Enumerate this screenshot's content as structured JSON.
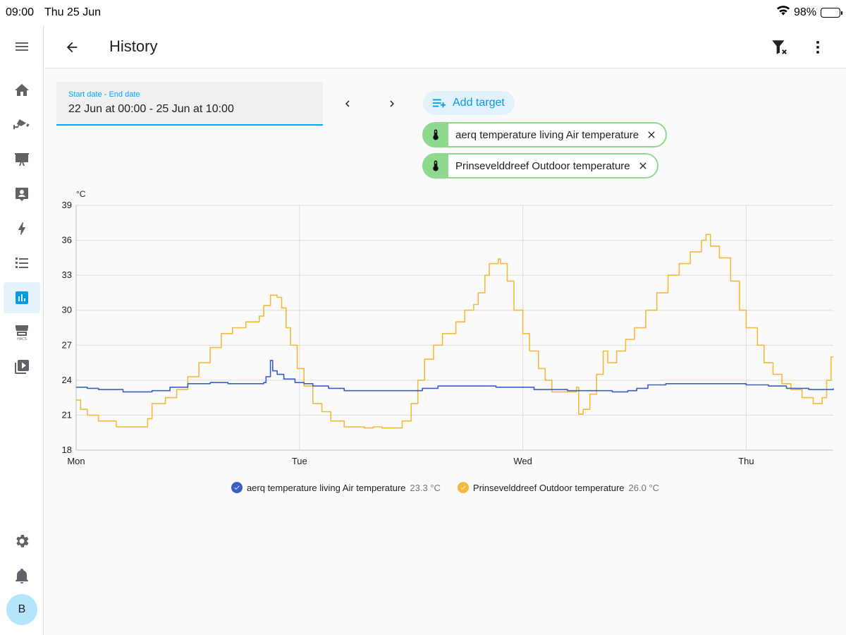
{
  "status": {
    "time": "09:00",
    "date": "Thu 25 Jun",
    "battery": "98%"
  },
  "header": {
    "title": "History"
  },
  "sidebar": {
    "items": [
      {
        "name": "menu-icon"
      },
      {
        "name": "home-icon"
      },
      {
        "name": "cctv-icon"
      },
      {
        "name": "presentation-icon"
      },
      {
        "name": "account-box-icon"
      },
      {
        "name": "lightning-icon"
      },
      {
        "name": "list-icon"
      },
      {
        "name": "chart-box-icon",
        "active": true
      },
      {
        "name": "hacs-icon"
      },
      {
        "name": "media-icon"
      },
      {
        "name": "settings-icon"
      },
      {
        "name": "bell-icon"
      }
    ],
    "avatar": "B"
  },
  "date_picker": {
    "label": "Start date - End date",
    "value": "22 Jun at 00:00 - 25 Jun at 10:00"
  },
  "targets": {
    "add_label": "Add target",
    "chips": [
      {
        "label": "aerq temperature living Air temperature"
      },
      {
        "label": "Prinsevelddreef Outdoor temperature"
      }
    ]
  },
  "colors": {
    "accent": "#03a9f4",
    "series_indoor": "#3b5fc4",
    "series_outdoor": "#f5b93b",
    "chip_green": "#8fd98f"
  },
  "chart_data": {
    "type": "line",
    "unit_label": "°C",
    "ylim": [
      18,
      39
    ],
    "yticks": [
      18,
      21,
      24,
      27,
      30,
      33,
      36,
      39
    ],
    "xlim": [
      0,
      3.39
    ],
    "xticks": [
      {
        "label": "Mon",
        "x": 0
      },
      {
        "label": "Tue",
        "x": 1
      },
      {
        "label": "Wed",
        "x": 2
      },
      {
        "label": "Thu",
        "x": 3
      }
    ],
    "grid": true,
    "series": [
      {
        "name": "aerq temperature living Air temperature",
        "current": "23.3 °C",
        "color": "#3b5fc4",
        "points": [
          [
            0,
            23.4
          ],
          [
            0.05,
            23.3
          ],
          [
            0.1,
            23.2
          ],
          [
            0.21,
            23.0
          ],
          [
            0.34,
            23.1
          ],
          [
            0.42,
            23.4
          ],
          [
            0.5,
            23.7
          ],
          [
            0.6,
            23.8
          ],
          [
            0.68,
            23.7
          ],
          [
            0.84,
            23.8
          ],
          [
            0.85,
            24.3
          ],
          [
            0.87,
            25.7
          ],
          [
            0.88,
            24.8
          ],
          [
            0.9,
            24.5
          ],
          [
            0.93,
            24.1
          ],
          [
            0.98,
            23.8
          ],
          [
            1.02,
            23.7
          ],
          [
            1.06,
            23.5
          ],
          [
            1.13,
            23.3
          ],
          [
            1.2,
            23.1
          ],
          [
            1.48,
            23.1
          ],
          [
            1.55,
            23.3
          ],
          [
            1.62,
            23.5
          ],
          [
            1.77,
            23.5
          ],
          [
            1.88,
            23.4
          ],
          [
            2.05,
            23.2
          ],
          [
            2.2,
            23.1
          ],
          [
            2.4,
            23.0
          ],
          [
            2.47,
            23.1
          ],
          [
            2.51,
            23.3
          ],
          [
            2.56,
            23.6
          ],
          [
            2.64,
            23.7
          ],
          [
            2.82,
            23.7
          ],
          [
            3.0,
            23.6
          ],
          [
            3.1,
            23.5
          ],
          [
            3.18,
            23.3
          ],
          [
            3.28,
            23.2
          ],
          [
            3.39,
            23.3
          ]
        ]
      },
      {
        "name": "Prinsevelddreef Outdoor temperature",
        "current": "26.0 °C",
        "color": "#f5b93b",
        "points": [
          [
            0,
            22.3
          ],
          [
            0.02,
            21.5
          ],
          [
            0.05,
            21.0
          ],
          [
            0.1,
            20.5
          ],
          [
            0.18,
            20.0
          ],
          [
            0.3,
            20.0
          ],
          [
            0.32,
            20.7
          ],
          [
            0.34,
            22.0
          ],
          [
            0.4,
            22.5
          ],
          [
            0.45,
            23.2
          ],
          [
            0.5,
            24.3
          ],
          [
            0.55,
            25.5
          ],
          [
            0.6,
            26.8
          ],
          [
            0.65,
            28.0
          ],
          [
            0.7,
            28.5
          ],
          [
            0.76,
            29.0
          ],
          [
            0.82,
            29.5
          ],
          [
            0.84,
            30.4
          ],
          [
            0.87,
            31.3
          ],
          [
            0.9,
            31.1
          ],
          [
            0.92,
            30.2
          ],
          [
            0.94,
            28.5
          ],
          [
            0.96,
            27.0
          ],
          [
            0.99,
            25.0
          ],
          [
            1.02,
            23.5
          ],
          [
            1.06,
            22.0
          ],
          [
            1.1,
            21.3
          ],
          [
            1.14,
            20.5
          ],
          [
            1.2,
            20.0
          ],
          [
            1.29,
            19.9
          ],
          [
            1.33,
            20.0
          ],
          [
            1.37,
            19.9
          ],
          [
            1.43,
            19.9
          ],
          [
            1.46,
            20.5
          ],
          [
            1.5,
            22.0
          ],
          [
            1.53,
            24.0
          ],
          [
            1.56,
            25.8
          ],
          [
            1.6,
            27.0
          ],
          [
            1.64,
            28.0
          ],
          [
            1.7,
            29.0
          ],
          [
            1.74,
            30.0
          ],
          [
            1.78,
            30.5
          ],
          [
            1.8,
            31.5
          ],
          [
            1.83,
            33.0
          ],
          [
            1.85,
            34.0
          ],
          [
            1.89,
            34.4
          ],
          [
            1.9,
            34.0
          ],
          [
            1.93,
            32.5
          ],
          [
            1.96,
            30.0
          ],
          [
            2.0,
            28.0
          ],
          [
            2.03,
            26.5
          ],
          [
            2.07,
            25.0
          ],
          [
            2.1,
            24.0
          ],
          [
            2.13,
            23.0
          ],
          [
            2.22,
            23.0
          ],
          [
            2.24,
            23.4
          ],
          [
            2.25,
            21.1
          ],
          [
            2.27,
            21.5
          ],
          [
            2.3,
            22.8
          ],
          [
            2.33,
            24.5
          ],
          [
            2.36,
            26.5
          ],
          [
            2.38,
            25.5
          ],
          [
            2.42,
            26.5
          ],
          [
            2.46,
            27.5
          ],
          [
            2.5,
            28.5
          ],
          [
            2.55,
            30.0
          ],
          [
            2.6,
            31.5
          ],
          [
            2.65,
            33.0
          ],
          [
            2.7,
            34.0
          ],
          [
            2.75,
            35.0
          ],
          [
            2.8,
            36.0
          ],
          [
            2.82,
            36.5
          ],
          [
            2.84,
            35.5
          ],
          [
            2.88,
            34.5
          ],
          [
            2.93,
            32.5
          ],
          [
            2.97,
            30.0
          ],
          [
            3.0,
            28.5
          ],
          [
            3.05,
            27.0
          ],
          [
            3.08,
            25.5
          ],
          [
            3.12,
            24.5
          ],
          [
            3.16,
            23.7
          ],
          [
            3.2,
            23.2
          ],
          [
            3.25,
            22.5
          ],
          [
            3.3,
            22.0
          ],
          [
            3.34,
            22.5
          ],
          [
            3.36,
            24.0
          ],
          [
            3.38,
            26.0
          ],
          [
            3.39,
            26.0
          ]
        ]
      }
    ]
  }
}
